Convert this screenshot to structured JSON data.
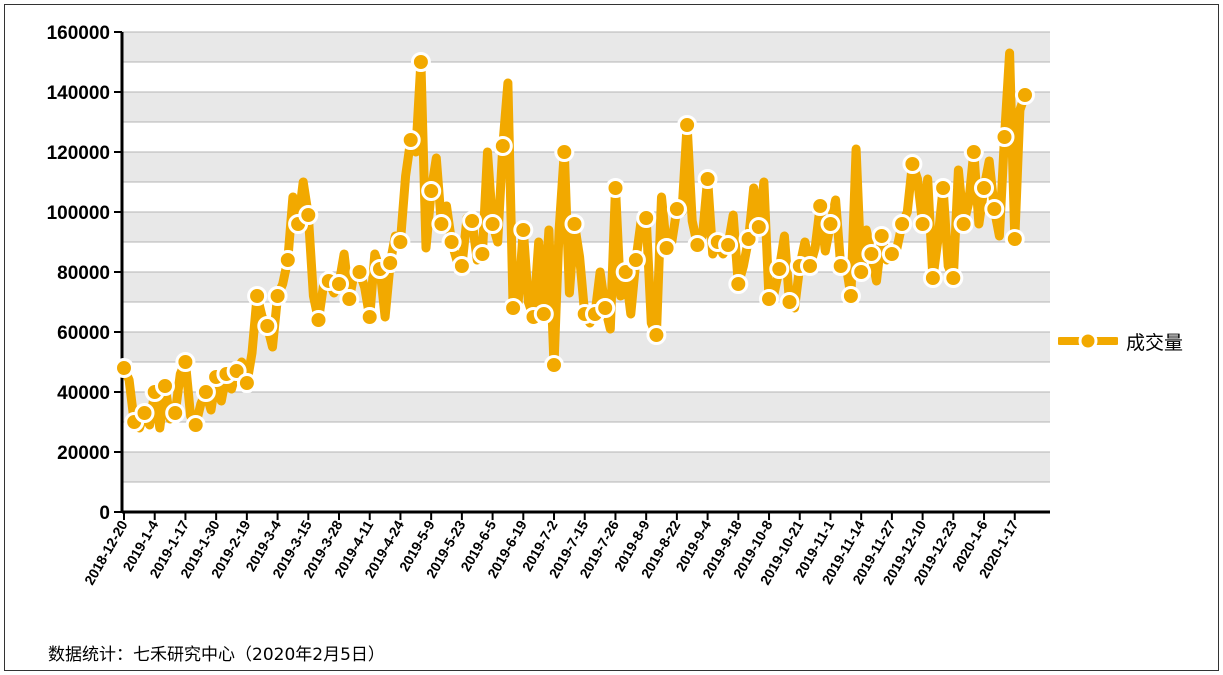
{
  "source_note": "数据统计：七禾研究中心（2020年2月5日）",
  "colors": {
    "series": "#F2A900",
    "marker_fill": "#F2A900",
    "marker_stroke": "#ffffff",
    "band": "#e8e8e8",
    "grid": "#b5b5b5"
  },
  "chart_data": {
    "type": "line",
    "ylim": [
      0,
      160000
    ],
    "yticks": [
      "0",
      "20000",
      "40000",
      "60000",
      "80000",
      "100000",
      "120000",
      "140000",
      "160000"
    ],
    "xtick_labels": [
      "2018-12-20",
      "2019-1-4",
      "2019-1-17",
      "2019-1-30",
      "2019-2-19",
      "2019-3-4",
      "2019-3-15",
      "2019-3-28",
      "2019-4-11",
      "2019-4-24",
      "2019-5-9",
      "2019-5-23",
      "2019-6-5",
      "2019-6-19",
      "2019-7-2",
      "2019-7-15",
      "2019-7-26",
      "2019-8-9",
      "2019-8-22",
      "2019-9-4",
      "2019-9-18",
      "2019-10-8",
      "2019-10-21",
      "2019-11-1",
      "2019-11-14",
      "2019-11-27",
      "2019-12-10",
      "2019-12-23",
      "2020-1-6",
      "2020-1-17"
    ],
    "grid": true,
    "legend_position": "right",
    "series": [
      {
        "name": "成交量",
        "values": [
          48000,
          44000,
          30000,
          28000,
          33000,
          29000,
          40000,
          28000,
          42000,
          31000,
          33000,
          46000,
          50000,
          32000,
          29000,
          36000,
          40000,
          34000,
          45000,
          37000,
          46000,
          41000,
          47000,
          50000,
          43000,
          53000,
          72000,
          65000,
          62000,
          55000,
          72000,
          76000,
          84000,
          105000,
          96000,
          110000,
          99000,
          72000,
          64000,
          76000,
          77000,
          73000,
          76000,
          86000,
          71000,
          80000,
          80000,
          75000,
          65000,
          86000,
          81000,
          65000,
          83000,
          92000,
          90000,
          112000,
          124000,
          120000,
          150000,
          88000,
          107000,
          118000,
          96000,
          102000,
          90000,
          84000,
          82000,
          98000,
          97000,
          84000,
          86000,
          120000,
          96000,
          90000,
          122000,
          143000,
          68000,
          70000,
          94000,
          70000,
          65000,
          90000,
          66000,
          94000,
          49000,
          94000,
          120000,
          73000,
          96000,
          85000,
          66000,
          63000,
          66000,
          80000,
          68000,
          61000,
          108000,
          72000,
          80000,
          66000,
          84000,
          97000,
          98000,
          63000,
          59000,
          105000,
          88000,
          90000,
          101000,
          100000,
          129000,
          97000,
          89000,
          92000,
          111000,
          86000,
          90000,
          86000,
          89000,
          99000,
          76000,
          82000,
          91000,
          108000,
          95000,
          110000,
          71000,
          73000,
          81000,
          92000,
          70000,
          68000,
          82000,
          90000,
          82000,
          88000,
          102000,
          87000,
          96000,
          104000,
          82000,
          83000,
          72000,
          121000,
          80000,
          94000,
          86000,
          77000,
          92000,
          84000,
          86000,
          88000,
          96000,
          100000,
          116000,
          111000,
          96000,
          111000,
          78000,
          91000,
          108000,
          82000,
          78000,
          114000,
          96000,
          103000,
          120000,
          96000,
          108000,
          117000,
          101000,
          92000,
          125000,
          153000,
          91000,
          134000,
          139000
        ]
      }
    ]
  }
}
